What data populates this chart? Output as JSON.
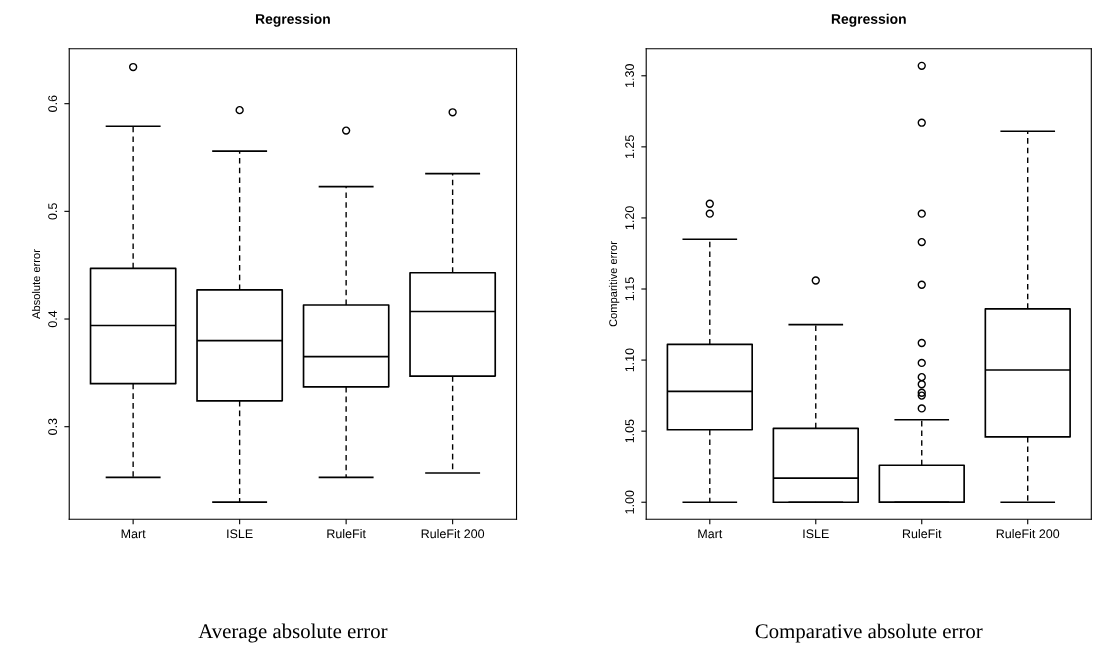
{
  "chart_data": [
    {
      "type": "box",
      "title": "Regression",
      "ylabel": "Absolute error",
      "categories": [
        "Mart",
        "ISLE",
        "RuleFit",
        "RuleFit 200"
      ],
      "boxes": [
        {
          "low": 0.253,
          "q1": 0.34,
          "median": 0.394,
          "q3": 0.447,
          "high": 0.579,
          "outliers": [
            0.634
          ]
        },
        {
          "low": 0.23,
          "q1": 0.324,
          "median": 0.38,
          "q3": 0.427,
          "high": 0.556,
          "outliers": [
            0.594
          ]
        },
        {
          "low": 0.253,
          "q1": 0.337,
          "median": 0.365,
          "q3": 0.413,
          "high": 0.523,
          "outliers": [
            0.575
          ]
        },
        {
          "low": 0.257,
          "q1": 0.347,
          "median": 0.407,
          "q3": 0.443,
          "high": 0.535,
          "outliers": [
            0.592
          ]
        }
      ],
      "ylim": [
        0.214,
        0.651
      ],
      "yticks": [
        0.3,
        0.4,
        0.5,
        0.6
      ],
      "line_style": "dashed",
      "annotations": [
        "Average absolute error"
      ]
    },
    {
      "type": "box",
      "title": "Regression",
      "ylabel": "Comparitive error",
      "categories": [
        "Mart",
        "ISLE",
        "RuleFit",
        "RuleFit 200"
      ],
      "boxes": [
        {
          "low": 1.0,
          "q1": 1.051,
          "median": 1.078,
          "q3": 1.111,
          "high": 1.185,
          "outliers": [
            1.203,
            1.21
          ]
        },
        {
          "low": 1.0,
          "q1": 1.0,
          "median": 1.017,
          "q3": 1.052,
          "high": 1.125,
          "outliers": [
            1.156
          ]
        },
        {
          "low": 1.0,
          "q1": 1.0,
          "median": 1.0,
          "q3": 1.026,
          "high": 1.058,
          "outliers": [
            1.066,
            1.075,
            1.077,
            1.083,
            1.088,
            1.098,
            1.112,
            1.153,
            1.183,
            1.203,
            1.267,
            1.307
          ]
        },
        {
          "low": 1.0,
          "q1": 1.046,
          "median": 1.093,
          "q3": 1.136,
          "high": 1.261
        }
      ],
      "ylim": [
        0.988,
        1.319
      ],
      "yticks": [
        {
          "value": 1.0,
          "label": "1.00"
        },
        {
          "value": 1.05,
          "label": "1.05"
        },
        {
          "value": 1.1,
          "label": "1.10"
        },
        {
          "value": 1.15,
          "label": "1.15"
        },
        {
          "value": 1.2,
          "label": "1.20"
        },
        {
          "value": 1.25,
          "label": "1.25"
        },
        {
          "value": 1.3,
          "label": "1.30"
        }
      ],
      "line_style": "dashed",
      "annotations": [
        "Comparative absolute error"
      ]
    }
  ]
}
